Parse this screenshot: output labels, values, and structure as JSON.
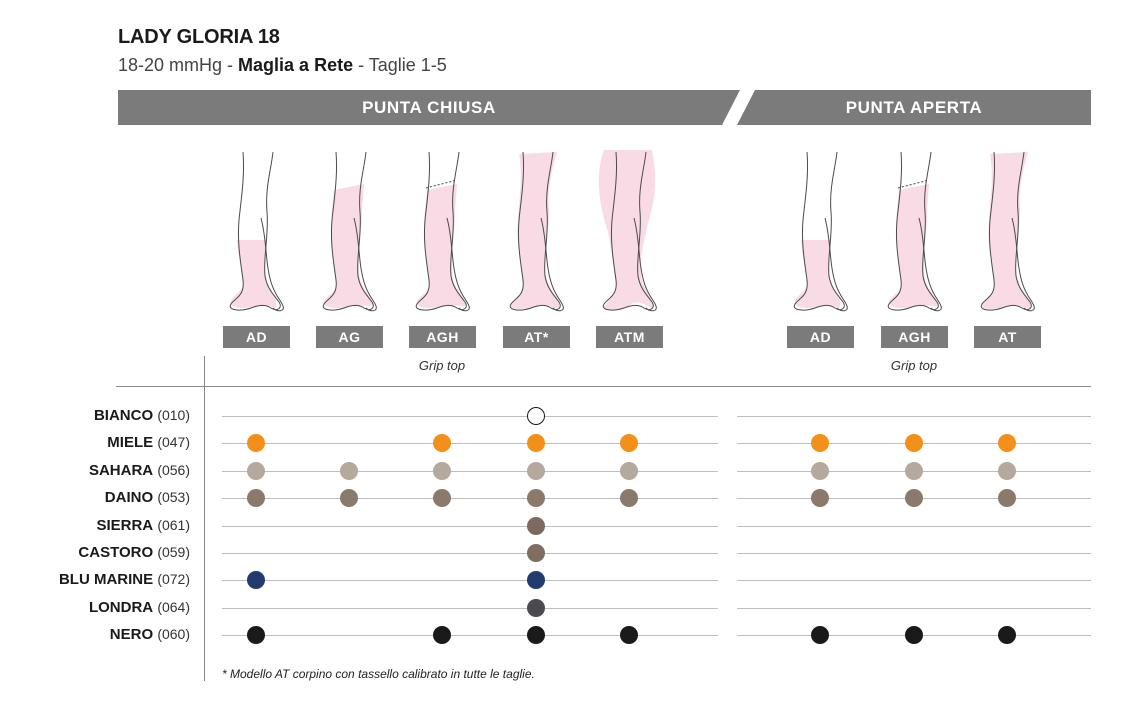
{
  "header": {
    "title": "LADY GLORIA 18",
    "subtitle_pressure": "18-20 mmHg - ",
    "subtitle_knit": "Maglia a Rete",
    "subtitle_sizes": " - Taglie 1-5"
  },
  "sections": {
    "closed_toe": "PUNTA CHIUSA",
    "open_toe": "PUNTA APERTA"
  },
  "models": {
    "closed": [
      "AD",
      "AG",
      "AGH",
      "AT*",
      "ATM"
    ],
    "open": [
      "AD",
      "AGH",
      "AT"
    ]
  },
  "notes": {
    "grip_top_closed": "Grip top",
    "grip_top_open": "Grip top"
  },
  "colors": [
    {
      "name": "BIANCO",
      "code": "(010)",
      "hex": "#ffffff",
      "closed": [
        false,
        false,
        false,
        true,
        false
      ],
      "open": [
        false,
        false,
        false
      ]
    },
    {
      "name": "MIELE",
      "code": "(047)",
      "hex": "#f39019",
      "closed": [
        true,
        false,
        true,
        true,
        true
      ],
      "open": [
        true,
        true,
        true
      ]
    },
    {
      "name": "SAHARA",
      "code": "(056)",
      "hex": "#b5a89d",
      "closed": [
        true,
        true,
        true,
        true,
        true
      ],
      "open": [
        true,
        true,
        true
      ]
    },
    {
      "name": "DAINO",
      "code": "(053)",
      "hex": "#8b796c",
      "closed": [
        true,
        true,
        true,
        true,
        true
      ],
      "open": [
        true,
        true,
        true
      ]
    },
    {
      "name": "SIERRA",
      "code": "(061)",
      "hex": "#7b6a5d",
      "closed": [
        false,
        false,
        false,
        true,
        false
      ],
      "open": [
        false,
        false,
        false
      ]
    },
    {
      "name": "CASTORO",
      "code": "(059)",
      "hex": "#7e6e60",
      "closed": [
        false,
        false,
        false,
        true,
        false
      ],
      "open": [
        false,
        false,
        false
      ]
    },
    {
      "name": "BLU MARINE",
      "code": "(072)",
      "hex": "#233c6e",
      "closed": [
        true,
        false,
        false,
        true,
        false
      ],
      "open": [
        false,
        false,
        false
      ]
    },
    {
      "name": "LONDRA",
      "code": "(064)",
      "hex": "#4a4b50",
      "closed": [
        false,
        false,
        false,
        true,
        false
      ],
      "open": [
        false,
        false,
        false
      ]
    },
    {
      "name": "NERO",
      "code": "(060)",
      "hex": "#1a1a1a",
      "closed": [
        true,
        false,
        true,
        true,
        true
      ],
      "open": [
        true,
        true,
        true
      ]
    }
  ],
  "footnote": "* Modello AT corpino con tassello calibrato in tutte le taglie."
}
